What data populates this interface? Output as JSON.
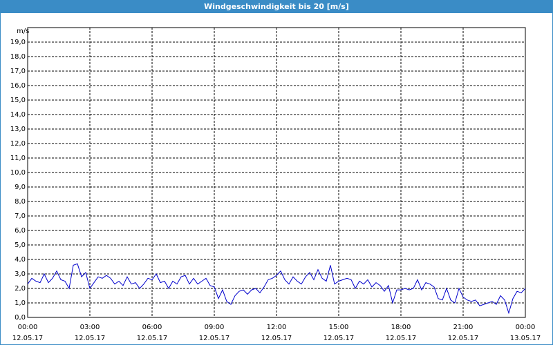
{
  "window_title": "Windgeschwindigkeit bis 20 [m/s]",
  "chart_data": {
    "type": "line",
    "y_label": "m/s",
    "x": [
      0,
      0.2,
      0.4,
      0.6,
      0.8,
      1,
      1.2,
      1.4,
      1.6,
      1.8,
      2,
      2.2,
      2.4,
      2.6,
      2.8,
      3,
      3.2,
      3.4,
      3.6,
      3.8,
      4,
      4.2,
      4.4,
      4.6,
      4.8,
      5,
      5.2,
      5.4,
      5.6,
      5.8,
      6,
      6.2,
      6.4,
      6.6,
      6.8,
      7,
      7.2,
      7.4,
      7.6,
      7.8,
      8,
      8.2,
      8.4,
      8.6,
      8.8,
      9,
      9.2,
      9.4,
      9.6,
      9.8,
      10,
      10.2,
      10.4,
      10.6,
      10.8,
      11,
      11.2,
      11.4,
      11.6,
      11.8,
      12,
      12.2,
      12.4,
      12.6,
      12.8,
      13,
      13.2,
      13.4,
      13.6,
      13.8,
      14,
      14.2,
      14.4,
      14.6,
      14.8,
      15,
      15.2,
      15.4,
      15.6,
      15.8,
      16,
      16.2,
      16.4,
      16.6,
      16.8,
      17,
      17.2,
      17.4,
      17.6,
      17.8,
      18,
      18.2,
      18.4,
      18.6,
      18.8,
      19,
      19.2,
      19.4,
      19.6,
      19.8,
      20,
      20.2,
      20.4,
      20.6,
      20.8,
      21,
      21.2,
      21.4,
      21.6,
      21.8,
      22,
      22.2,
      22.4,
      22.6,
      22.8,
      23,
      23.2,
      23.4,
      23.6,
      23.8,
      24
    ],
    "series": [
      {
        "color": "#0000cc",
        "values": [
          2.3,
          2.7,
          2.5,
          2.4,
          3.0,
          2.4,
          2.7,
          3.2,
          2.6,
          2.5,
          2.0,
          3.6,
          3.7,
          2.8,
          3.1,
          2.0,
          2.4,
          2.8,
          2.7,
          2.9,
          2.7,
          2.3,
          2.5,
          2.2,
          2.8,
          2.3,
          2.4,
          2.0,
          2.3,
          2.7,
          2.6,
          3.0,
          2.4,
          2.5,
          2.0,
          2.5,
          2.3,
          2.8,
          2.9,
          2.3,
          2.7,
          2.3,
          2.5,
          2.7,
          2.2,
          2.1,
          1.3,
          1.9,
          1.1,
          0.9,
          1.5,
          1.8,
          1.9,
          1.6,
          1.9,
          2.0,
          1.7,
          2.1,
          2.6,
          2.7,
          2.9,
          3.2,
          2.6,
          2.3,
          2.8,
          2.5,
          2.3,
          2.8,
          3.1,
          2.6,
          3.3,
          2.7,
          2.5,
          3.6,
          2.3,
          2.5,
          2.6,
          2.7,
          2.6,
          2.0,
          2.5,
          2.3,
          2.6,
          2.1,
          2.4,
          2.2,
          1.8,
          2.2,
          1.0,
          1.9,
          1.9,
          2.0,
          1.9,
          2.0,
          2.6,
          1.9,
          2.4,
          2.3,
          2.1,
          1.3,
          1.2,
          2.0,
          1.2,
          1.0,
          2.0,
          1.4,
          1.2,
          1.1,
          1.2,
          0.8,
          0.9,
          1.0,
          1.1,
          0.9,
          1.5,
          1.2,
          0.3,
          1.3,
          1.8,
          1.7,
          2.0
        ]
      }
    ],
    "xlim": [
      0,
      24
    ],
    "xticks": [
      {
        "value": 0,
        "label": "00:00"
      },
      {
        "value": 3,
        "label": "03:00"
      },
      {
        "value": 6,
        "label": "06:00"
      },
      {
        "value": 9,
        "label": "09:00"
      },
      {
        "value": 12,
        "label": "12:00"
      },
      {
        "value": 15,
        "label": "15:00"
      },
      {
        "value": 18,
        "label": "18:00"
      },
      {
        "value": 21,
        "label": "21:00"
      },
      {
        "value": 24,
        "label": "00:00"
      }
    ],
    "xtick_dates": [
      "12.05.17",
      "12.05.17",
      "12.05.17",
      "12.05.17",
      "12.05.17",
      "12.05.17",
      "12.05.17",
      "12.05.17",
      "13.05.17"
    ],
    "ylim": [
      0,
      20
    ],
    "yticks": [
      {
        "value": 0,
        "label": "0,0"
      },
      {
        "value": 1,
        "label": "1,0"
      },
      {
        "value": 2,
        "label": "2,0"
      },
      {
        "value": 3,
        "label": "3,0"
      },
      {
        "value": 4,
        "label": "4,0"
      },
      {
        "value": 5,
        "label": "5,0"
      },
      {
        "value": 6,
        "label": "6,0"
      },
      {
        "value": 7,
        "label": "7,0"
      },
      {
        "value": 8,
        "label": "8,0"
      },
      {
        "value": 9,
        "label": "9,0"
      },
      {
        "value": 10,
        "label": "10,0"
      },
      {
        "value": 11,
        "label": "11,0"
      },
      {
        "value": 12,
        "label": "12,0"
      },
      {
        "value": 13,
        "label": "13,0"
      },
      {
        "value": 14,
        "label": "14,0"
      },
      {
        "value": 15,
        "label": "15,0"
      },
      {
        "value": 16,
        "label": "16,0"
      },
      {
        "value": 17,
        "label": "17,0"
      },
      {
        "value": 18,
        "label": "18,0"
      },
      {
        "value": 19,
        "label": "19,0"
      }
    ],
    "grid": true
  }
}
